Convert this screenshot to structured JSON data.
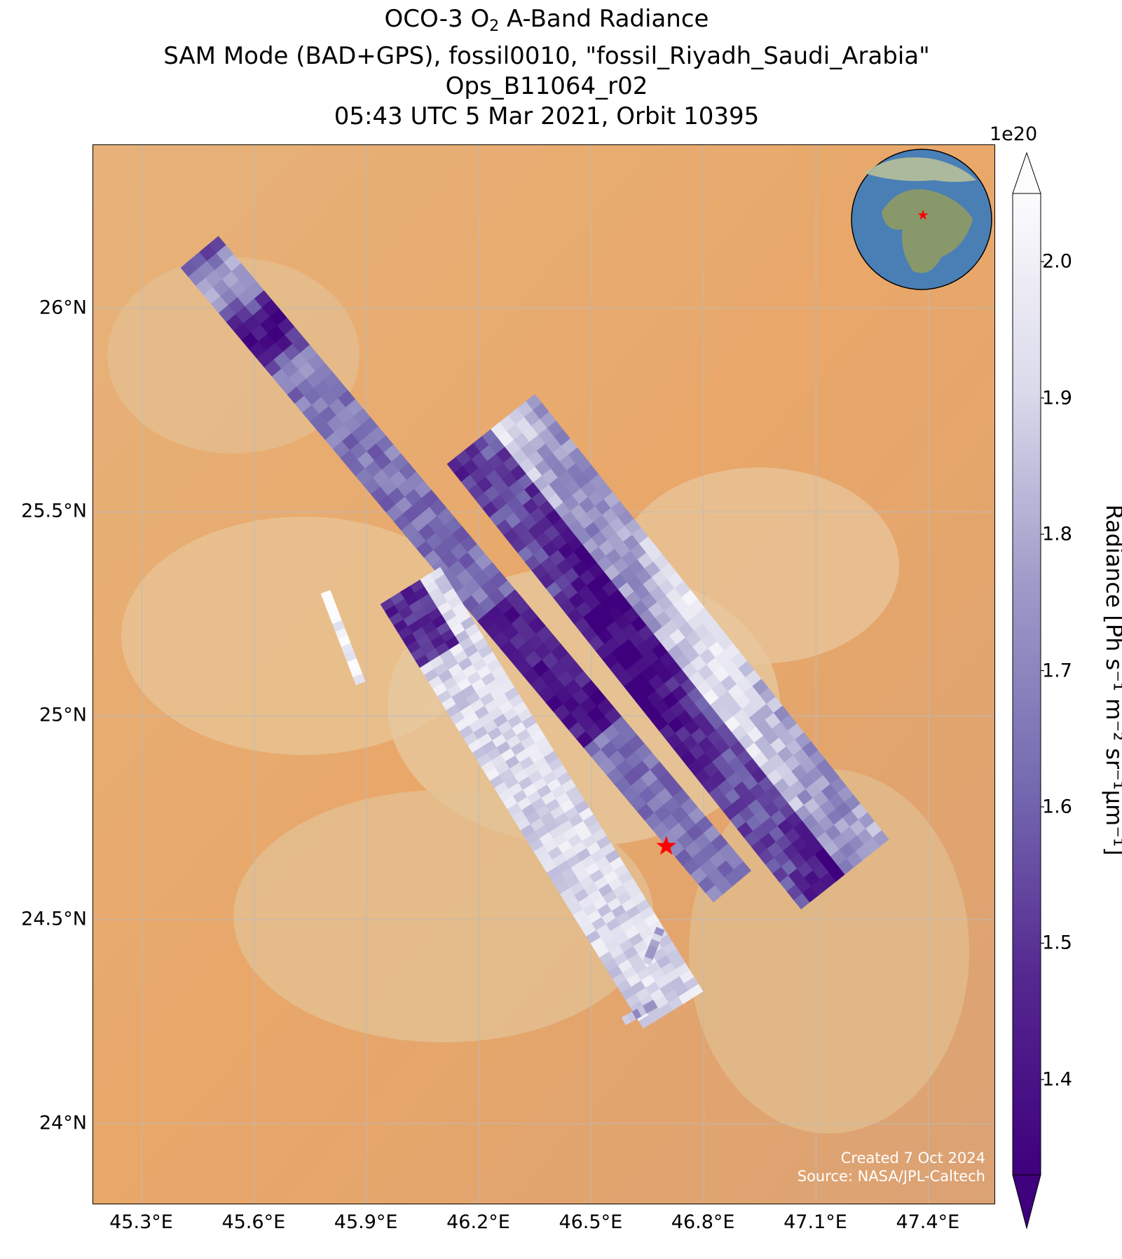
{
  "title": {
    "line1_prefix": "OCO-3 O",
    "line1_sub": "2",
    "line1_suffix": " A-Band Radiance",
    "line2": "SAM Mode (BAD+GPS), fossil0010, \"fossil_Riyadh_Saudi_Arabia\"",
    "line3": "Ops_B11064_r02",
    "line4": "05:43 UTC 5 Mar 2021, Orbit 10395"
  },
  "map": {
    "lon_range": [
      45.17,
      47.58
    ],
    "lat_range": [
      23.8,
      26.4
    ],
    "lat_ticks": [
      "24°N",
      "24.5°N",
      "25°N",
      "25.5°N",
      "26°N"
    ],
    "lat_values": [
      24.0,
      24.5,
      25.0,
      25.5,
      26.0
    ],
    "lon_ticks": [
      "45.3°E",
      "45.6°E",
      "45.9°E",
      "46.2°E",
      "46.5°E",
      "46.8°E",
      "47.1°E",
      "47.4°E"
    ],
    "lon_values": [
      45.3,
      45.6,
      45.9,
      46.2,
      46.5,
      46.8,
      47.1,
      47.4
    ],
    "target": {
      "lon": 46.7,
      "lat": 24.68,
      "color": "#ff0000"
    },
    "background_color": "#eaa66a",
    "grid": true
  },
  "colorbar": {
    "exponent": "1e20",
    "ticks": [
      "1.4",
      "1.5",
      "1.6",
      "1.7",
      "1.8",
      "1.9",
      "2.0"
    ],
    "tick_values": [
      1.4,
      1.5,
      1.6,
      1.7,
      1.8,
      1.9,
      2.0
    ],
    "range": [
      1.33,
      2.05
    ],
    "label": "Radiance [Ph s⁻¹ m⁻² sr⁻¹μm⁻¹]",
    "colormap": "Purples_r",
    "extend": "both"
  },
  "credits": {
    "created": "Created 7 Oct 2024",
    "source": "Source: NASA/JPL-Caltech"
  }
}
